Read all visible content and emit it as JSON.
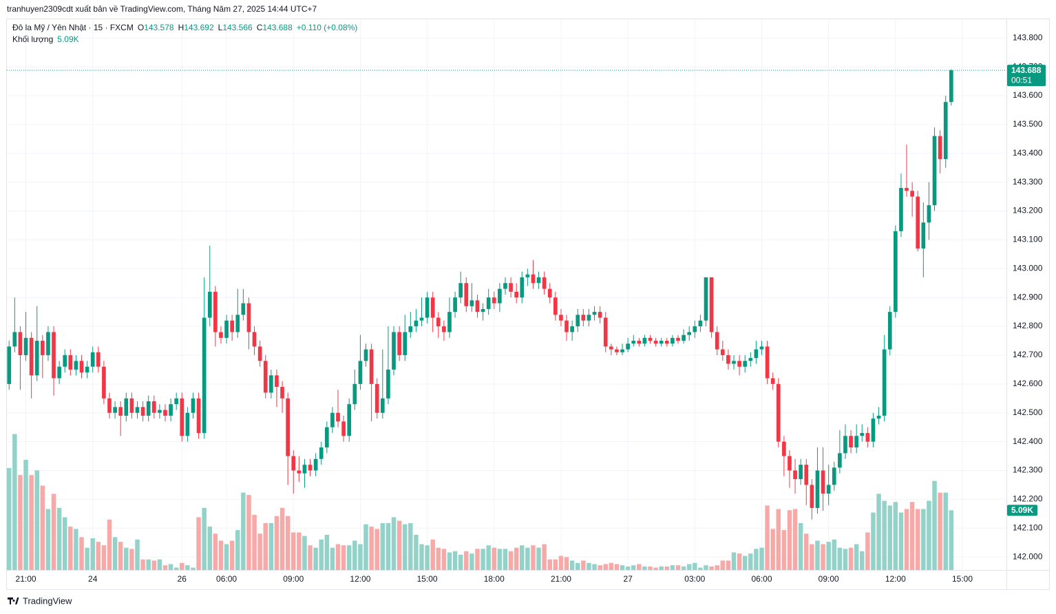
{
  "header": {
    "published": "tranhuyen2309cdt xuất bản về TradingView.com, Tháng Năm 27, 2025 14:44 UTC+7"
  },
  "footer": {
    "brand": "TradingView"
  },
  "chart_data": {
    "type": "candlestick",
    "legend": {
      "symbol": "Đô la Mỹ / Yên Nhật · 15 · FXCM",
      "open_label": "O",
      "high_label": "H",
      "low_label": "L",
      "close_label": "C",
      "change": "+0.110 (+0.08%)",
      "volume_label": "Khối lượng"
    },
    "up_color": "#089981",
    "down_color": "#f23645",
    "volume_up_color": "#93d2c8",
    "volume_down_color": "#f7a9a7",
    "grid": true,
    "countdown": "00:51",
    "volume_last_label": "5.09K",
    "xlim": [
      -0.4,
      178.9
    ],
    "xticks": [
      {
        "value": 3,
        "label": "21:00"
      },
      {
        "value": 15,
        "label": "24"
      },
      {
        "value": 31,
        "label": "26"
      },
      {
        "value": 39,
        "label": "06:00"
      },
      {
        "value": 51,
        "label": "09:00"
      },
      {
        "value": 63,
        "label": "12:00"
      },
      {
        "value": 75,
        "label": "15:00"
      },
      {
        "value": 87,
        "label": "18:00"
      },
      {
        "value": 99,
        "label": "21:00"
      },
      {
        "value": 111,
        "label": "27"
      },
      {
        "value": 123,
        "label": "03:00"
      },
      {
        "value": 135,
        "label": "06:00"
      },
      {
        "value": 147,
        "label": "09:00"
      },
      {
        "value": 159,
        "label": "12:00"
      },
      {
        "value": 171,
        "label": "15:00"
      }
    ],
    "ylim": [
      141.955,
      143.865
    ],
    "yticks": [
      {
        "value": 143.8,
        "label": "143.800"
      },
      {
        "value": 143.7,
        "label": "143.700"
      },
      {
        "value": 143.6,
        "label": "143.600"
      },
      {
        "value": 143.5,
        "label": "143.500"
      },
      {
        "value": 143.4,
        "label": "143.400"
      },
      {
        "value": 143.3,
        "label": "143.300"
      },
      {
        "value": 143.2,
        "label": "143.200"
      },
      {
        "value": 143.1,
        "label": "143.100"
      },
      {
        "value": 143.0,
        "label": "143.000"
      },
      {
        "value": 142.9,
        "label": "142.900"
      },
      {
        "value": 142.8,
        "label": "142.800"
      },
      {
        "value": 142.7,
        "label": "142.700"
      },
      {
        "value": 142.6,
        "label": "142.600"
      },
      {
        "value": 142.5,
        "label": "142.500"
      },
      {
        "value": 142.4,
        "label": "142.400"
      },
      {
        "value": 142.3,
        "label": "142.300"
      },
      {
        "value": 142.2,
        "label": "142.200"
      },
      {
        "value": 142.1,
        "label": "142.100"
      },
      {
        "value": 142.0,
        "label": "142.000"
      }
    ],
    "volume_ylim": [
      0,
      47000
    ],
    "open": [
      142.6,
      142.73,
      142.78,
      142.7,
      142.76,
      142.63,
      142.75,
      142.7,
      142.78,
      142.62,
      142.66,
      142.7,
      142.65,
      142.68,
      142.64,
      142.66,
      142.71,
      142.66,
      142.55,
      142.5,
      142.52,
      142.49,
      142.55,
      142.5,
      142.52,
      142.49,
      142.54,
      142.5,
      142.51,
      142.49,
      142.53,
      142.55,
      142.42,
      142.5,
      142.55,
      142.43,
      142.83,
      142.92,
      142.78,
      142.76,
      142.82,
      142.78,
      142.84,
      142.88,
      142.78,
      142.73,
      142.68,
      142.57,
      142.63,
      142.59,
      142.55,
      142.35,
      142.3,
      142.29,
      142.32,
      142.3,
      142.34,
      142.38,
      142.45,
      142.5,
      142.47,
      142.42,
      142.53,
      142.6,
      142.68,
      142.72,
      142.6,
      142.5,
      142.55,
      142.65,
      142.78,
      142.7,
      142.78,
      142.8,
      142.82,
      142.83,
      142.9,
      142.83,
      142.8,
      142.78,
      142.85,
      142.9,
      142.95,
      142.87,
      142.89,
      142.85,
      142.86,
      142.9,
      142.88,
      142.93,
      142.95,
      142.92,
      142.9,
      142.97,
      142.98,
      142.95,
      142.97,
      142.93,
      142.9,
      142.84,
      142.82,
      142.78,
      142.8,
      142.84,
      142.82,
      142.84,
      142.85,
      142.83,
      142.73,
      142.72,
      142.71,
      142.72,
      142.74,
      142.75,
      142.74,
      142.76,
      142.75,
      142.74,
      142.75,
      142.74,
      142.76,
      142.75,
      142.77,
      142.78,
      142.8,
      142.82,
      142.97,
      142.78,
      142.72,
      142.7,
      142.67,
      142.68,
      142.66,
      142.68,
      142.69,
      142.72,
      142.73,
      142.62,
      142.6,
      142.4,
      142.35,
      142.3,
      142.27,
      142.32,
      142.25,
      142.17,
      142.3,
      142.22,
      142.25,
      142.31,
      142.36,
      142.42,
      142.38,
      142.42,
      142.43,
      142.4,
      142.48,
      142.49,
      142.72,
      142.85,
      143.13,
      143.28,
      143.27,
      143.25,
      143.07,
      143.16,
      143.22,
      143.46,
      143.38,
      143.578
    ],
    "high": [
      142.75,
      142.9,
      142.8,
      142.85,
      142.78,
      142.87,
      142.77,
      142.8,
      142.8,
      142.68,
      142.72,
      142.72,
      142.7,
      142.7,
      142.68,
      142.73,
      142.73,
      142.68,
      142.57,
      142.54,
      142.54,
      142.57,
      142.57,
      142.54,
      142.54,
      142.56,
      142.56,
      142.53,
      142.53,
      142.55,
      142.57,
      142.57,
      142.52,
      142.57,
      142.57,
      142.97,
      143.08,
      142.94,
      142.8,
      142.84,
      142.84,
      142.93,
      142.93,
      142.9,
      142.8,
      142.75,
      142.7,
      142.65,
      142.65,
      142.61,
      142.57,
      142.37,
      142.35,
      142.34,
      142.34,
      142.36,
      142.4,
      142.47,
      142.52,
      142.58,
      142.49,
      142.55,
      142.65,
      142.77,
      142.74,
      142.74,
      142.62,
      142.72,
      142.8,
      142.8,
      142.8,
      142.84,
      142.85,
      142.86,
      142.9,
      142.92,
      142.92,
      142.85,
      142.82,
      142.9,
      142.92,
      142.99,
      142.97,
      142.95,
      142.91,
      142.88,
      142.93,
      142.92,
      142.95,
      142.97,
      142.97,
      142.95,
      142.99,
      143.0,
      143.03,
      142.99,
      142.99,
      142.95,
      142.92,
      142.86,
      142.84,
      142.82,
      142.86,
      142.86,
      142.86,
      142.87,
      142.87,
      142.85,
      142.74,
      142.73,
      142.74,
      142.76,
      142.77,
      142.76,
      142.77,
      142.77,
      142.76,
      142.76,
      142.76,
      142.77,
      142.77,
      142.79,
      142.8,
      142.82,
      142.84,
      142.97,
      142.97,
      142.8,
      142.75,
      142.72,
      142.7,
      142.7,
      142.7,
      142.71,
      142.75,
      142.75,
      142.75,
      142.64,
      142.62,
      142.42,
      142.37,
      142.34,
      142.34,
      142.34,
      142.27,
      142.38,
      142.38,
      142.32,
      142.33,
      142.44,
      142.46,
      142.44,
      142.46,
      142.46,
      142.45,
      142.5,
      142.52,
      142.77,
      142.87,
      143.15,
      143.33,
      143.43,
      143.3,
      143.27,
      143.23,
      143.3,
      143.49,
      143.48,
      143.6,
      143.692
    ],
    "low": [
      142.58,
      142.71,
      142.58,
      142.68,
      142.55,
      142.61,
      142.62,
      142.68,
      142.56,
      142.6,
      142.64,
      142.63,
      142.63,
      142.62,
      142.62,
      142.64,
      142.64,
      142.53,
      142.48,
      142.48,
      142.42,
      142.47,
      142.48,
      142.48,
      142.47,
      142.47,
      142.48,
      142.48,
      142.47,
      142.47,
      142.51,
      142.4,
      142.4,
      142.48,
      142.41,
      142.41,
      142.8,
      142.73,
      142.74,
      142.74,
      142.75,
      142.76,
      142.82,
      142.72,
      142.7,
      142.66,
      142.55,
      142.55,
      142.52,
      142.5,
      142.25,
      142.22,
      142.26,
      142.24,
      142.28,
      142.28,
      142.32,
      142.36,
      142.43,
      142.45,
      142.4,
      142.4,
      142.51,
      142.58,
      142.66,
      142.47,
      142.48,
      142.48,
      142.53,
      142.63,
      142.68,
      142.68,
      142.76,
      142.78,
      142.8,
      142.81,
      142.78,
      142.76,
      142.75,
      142.76,
      142.83,
      142.88,
      142.85,
      142.85,
      142.83,
      142.82,
      142.84,
      142.86,
      142.85,
      142.91,
      142.9,
      142.88,
      142.88,
      142.94,
      142.93,
      142.93,
      142.91,
      142.88,
      142.82,
      142.8,
      142.75,
      142.75,
      142.78,
      142.8,
      142.8,
      142.82,
      142.81,
      142.71,
      142.7,
      142.7,
      142.7,
      142.71,
      142.73,
      142.73,
      142.73,
      142.74,
      142.73,
      142.73,
      142.73,
      142.73,
      142.74,
      142.74,
      142.75,
      142.76,
      142.78,
      142.8,
      142.76,
      142.7,
      142.68,
      142.65,
      142.65,
      142.63,
      142.64,
      142.66,
      142.67,
      142.7,
      142.6,
      142.58,
      142.38,
      142.28,
      142.24,
      142.22,
      142.25,
      142.18,
      142.13,
      142.15,
      142.16,
      142.18,
      142.23,
      142.29,
      142.34,
      142.36,
      142.36,
      142.4,
      142.38,
      142.38,
      142.46,
      142.47,
      142.7,
      142.83,
      143.11,
      143.25,
      143.18,
      143.06,
      142.97,
      143.1,
      143.2,
      143.33,
      143.35,
      143.566
    ],
    "close": [
      142.73,
      142.78,
      142.7,
      142.76,
      142.63,
      142.75,
      142.7,
      142.78,
      142.62,
      142.66,
      142.7,
      142.65,
      142.68,
      142.64,
      142.66,
      142.71,
      142.66,
      142.55,
      142.5,
      142.52,
      142.49,
      142.55,
      142.5,
      142.52,
      142.49,
      142.54,
      142.5,
      142.51,
      142.49,
      142.53,
      142.55,
      142.42,
      142.5,
      142.55,
      142.43,
      142.83,
      142.92,
      142.78,
      142.76,
      142.82,
      142.78,
      142.84,
      142.88,
      142.78,
      142.73,
      142.68,
      142.57,
      142.63,
      142.59,
      142.55,
      142.35,
      142.3,
      142.29,
      142.32,
      142.3,
      142.34,
      142.38,
      142.45,
      142.5,
      142.47,
      142.42,
      142.53,
      142.6,
      142.68,
      142.72,
      142.6,
      142.5,
      142.55,
      142.65,
      142.78,
      142.7,
      142.78,
      142.8,
      142.82,
      142.83,
      142.9,
      142.83,
      142.8,
      142.78,
      142.85,
      142.9,
      142.95,
      142.87,
      142.89,
      142.85,
      142.86,
      142.9,
      142.88,
      142.93,
      142.95,
      142.92,
      142.9,
      142.97,
      142.98,
      142.95,
      142.97,
      142.93,
      142.9,
      142.84,
      142.82,
      142.78,
      142.8,
      142.84,
      142.82,
      142.84,
      142.85,
      142.83,
      142.73,
      142.72,
      142.71,
      142.72,
      142.74,
      142.75,
      142.74,
      142.76,
      142.75,
      142.74,
      142.75,
      142.74,
      142.76,
      142.75,
      142.77,
      142.78,
      142.8,
      142.82,
      142.97,
      142.78,
      142.72,
      142.7,
      142.67,
      142.68,
      142.66,
      142.68,
      142.69,
      142.72,
      142.73,
      142.62,
      142.6,
      142.4,
      142.35,
      142.3,
      142.27,
      142.32,
      142.25,
      142.17,
      142.3,
      142.22,
      142.25,
      142.31,
      142.36,
      142.42,
      142.38,
      142.42,
      142.43,
      142.4,
      142.48,
      142.49,
      142.72,
      142.85,
      143.13,
      143.28,
      143.27,
      143.25,
      143.07,
      143.16,
      143.22,
      143.46,
      143.38,
      143.578,
      143.688
    ],
    "volume": [
      8700,
      11600,
      8100,
      9400,
      8100,
      8500,
      7200,
      5200,
      6500,
      5300,
      4500,
      3700,
      3500,
      2800,
      1900,
      2700,
      2400,
      2100,
      4300,
      2800,
      2400,
      1900,
      1800,
      2600,
      900,
      900,
      800,
      900,
      400,
      500,
      200,
      600,
      400,
      200,
      4500,
      5300,
      3700,
      3100,
      2500,
      2200,
      2500,
      3400,
      6600,
      6400,
      4700,
      3100,
      4000,
      4000,
      4600,
      5300,
      4600,
      3200,
      3200,
      2900,
      2100,
      1900,
      2600,
      3000,
      1900,
      2200,
      2100,
      2100,
      2500,
      2200,
      3900,
      3700,
      3500,
      4000,
      4000,
      4500,
      4200,
      3900,
      4000,
      3000,
      2200,
      2100,
      2600,
      1900,
      1800,
      1500,
      1600,
      1300,
      1600,
      1400,
      1800,
      1800,
      2100,
      1900,
      1800,
      1800,
      1600,
      1900,
      2100,
      1900,
      2100,
      1900,
      2200,
      900,
      900,
      1200,
      1100,
      800,
      600,
      800,
      600,
      500,
      400,
      500,
      600,
      500,
      400,
      300,
      400,
      500,
      300,
      300,
      200,
      300,
      300,
      400,
      400,
      300,
      500,
      600,
      200,
      400,
      300,
      400,
      800,
      800,
      1500,
      1400,
      1200,
      1400,
      1800,
      1900,
      5500,
      3500,
      5200,
      3400,
      5100,
      5200,
      4000,
      3100,
      2200,
      2500,
      2200,
      2400,
      2600,
      1900,
      1800,
      1900,
      2200,
      1600,
      3200,
      4900,
      6500,
      5900,
      5500,
      5800,
      4900,
      5200,
      5800,
      5200,
      5200,
      5900,
      7600,
      6600,
      6600,
      5090
    ]
  }
}
